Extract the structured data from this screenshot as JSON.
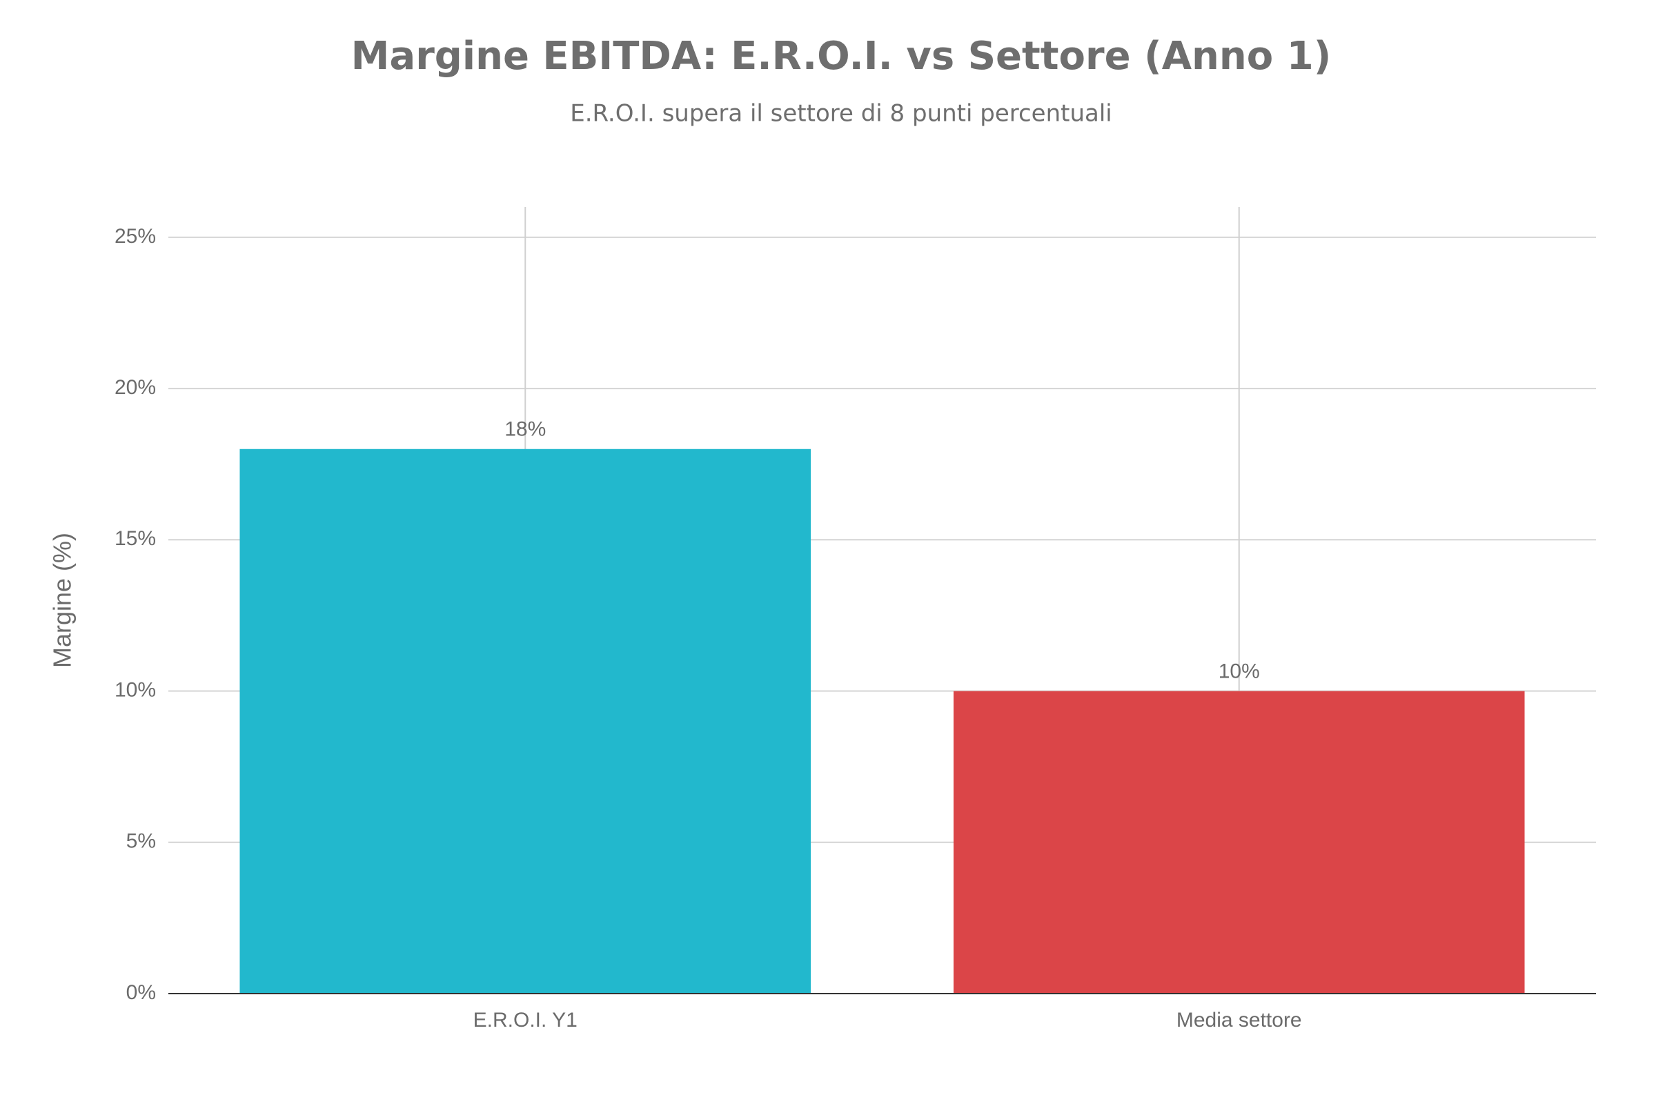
{
  "chart_data": {
    "type": "bar",
    "title": "Margine EBITDA: E.R.O.I. vs Settore (Anno 1)",
    "subtitle": "E.R.O.I. supera il settore di 8 punti percentuali",
    "y_label": "Margine (%)",
    "categories": [
      "E.R.O.I. Y1",
      "Media settore"
    ],
    "values": [
      18,
      10
    ],
    "value_labels": [
      "18%",
      "10%"
    ],
    "colors": [
      "#22b8cd",
      "#db4548"
    ],
    "ylim": [
      0,
      26
    ],
    "yticks": [
      {
        "value": 0,
        "label": "0%"
      },
      {
        "value": 5,
        "label": "5%"
      },
      {
        "value": 10,
        "label": "10%"
      },
      {
        "value": 15,
        "label": "15%"
      },
      {
        "value": 20,
        "label": "20%"
      },
      {
        "value": 25,
        "label": "25%"
      }
    ],
    "grid": true
  }
}
